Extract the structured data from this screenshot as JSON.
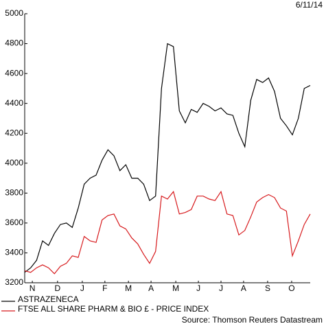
{
  "chart_data": {
    "type": "line",
    "date": "6/11/14",
    "source": "Source: Thomson Reuters Datastream",
    "x": [
      0,
      0.25,
      0.5,
      0.75,
      1,
      1.25,
      1.5,
      1.75,
      2,
      2.25,
      2.5,
      2.75,
      3,
      3.25,
      3.5,
      3.75,
      4,
      4.25,
      4.5,
      4.75,
      5,
      5.25,
      5.5,
      5.75,
      6,
      6.25,
      6.5,
      6.75,
      7,
      7.25,
      7.5,
      7.75,
      8,
      8.25,
      8.5,
      8.75,
      9,
      9.25,
      9.5,
      9.75,
      10,
      10.25,
      10.5,
      10.75,
      11,
      11.25,
      11.5,
      11.75,
      12
    ],
    "xlim": [
      0,
      12
    ],
    "xticks": [
      {
        "value": 0.32,
        "label": "N"
      },
      {
        "value": 1.38,
        "label": "D"
      },
      {
        "value": 2.42,
        "label": "J"
      },
      {
        "value": 3.37,
        "label": "F"
      },
      {
        "value": 4.36,
        "label": "M"
      },
      {
        "value": 5.31,
        "label": "A"
      },
      {
        "value": 6.35,
        "label": "M"
      },
      {
        "value": 7.3,
        "label": "J"
      },
      {
        "value": 8.25,
        "label": "J"
      },
      {
        "value": 9.2,
        "label": "A"
      },
      {
        "value": 10.21,
        "label": "S"
      },
      {
        "value": 11.22,
        "label": "O"
      }
    ],
    "ylim": [
      3200,
      5000
    ],
    "yticks": [
      3200,
      3400,
      3600,
      3800,
      4000,
      4200,
      4400,
      4600,
      4800,
      5000
    ],
    "legend": "bottom-left",
    "series": [
      {
        "name": "ASTRAZENECA",
        "color": "#000000",
        "values": [
          3270,
          3300,
          3350,
          3480,
          3450,
          3530,
          3590,
          3600,
          3570,
          3700,
          3860,
          3900,
          3920,
          4020,
          4090,
          4050,
          3950,
          3990,
          3900,
          3900,
          3860,
          3750,
          3780,
          4500,
          4800,
          4780,
          4350,
          4270,
          4360,
          4340,
          4400,
          4380,
          4350,
          4370,
          4330,
          4320,
          4200,
          4110,
          4420,
          4560,
          4540,
          4570,
          4480,
          4300,
          4250,
          4190,
          4300,
          4500,
          4520
        ]
      },
      {
        "name": "FTSE ALL SHARE PHARM & BIO £ - PRICE INDEX",
        "color": "#d7191c",
        "values": [
          3280,
          3270,
          3300,
          3320,
          3300,
          3260,
          3310,
          3330,
          3380,
          3370,
          3510,
          3480,
          3470,
          3620,
          3650,
          3660,
          3580,
          3560,
          3500,
          3460,
          3390,
          3330,
          3410,
          3780,
          3760,
          3810,
          3660,
          3670,
          3690,
          3780,
          3780,
          3760,
          3750,
          3810,
          3660,
          3650,
          3520,
          3550,
          3640,
          3740,
          3770,
          3790,
          3770,
          3700,
          3680,
          3380,
          3480,
          3590,
          3660
        ]
      }
    ]
  }
}
